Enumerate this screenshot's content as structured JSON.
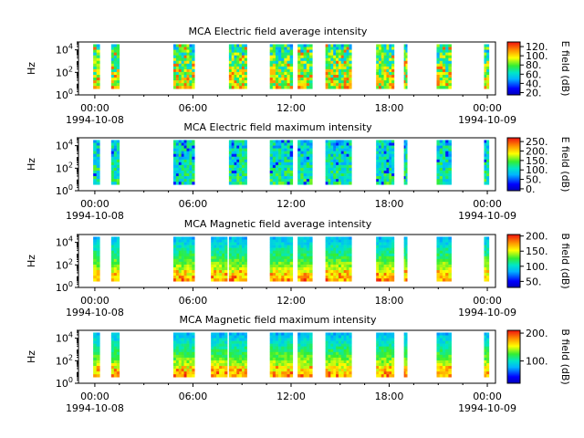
{
  "chart_data": [
    {
      "type": "heatmap",
      "title": "MCA  Electric field average intensity",
      "ylabel": "Hz",
      "colorbar_label": "E field (dB)",
      "colorbar_ticks": [
        "20.",
        "40.",
        "60.",
        "80.",
        "100.",
        "120."
      ],
      "colorbar_range": [
        15,
        130
      ],
      "y_ticks": [
        {
          "base": "10",
          "exp": "0"
        },
        {
          "base": "10",
          "exp": "2"
        },
        {
          "base": "10",
          "exp": "4"
        }
      ],
      "y_scale": "log",
      "x_ticks": [
        "00:00",
        "06:00",
        "12:00",
        "18:00",
        "00:00"
      ],
      "x_dates": [
        "1994-10-08",
        "1994-10-09"
      ],
      "x_range_hours": [
        -1,
        24.5
      ],
      "ylim_log10": [
        0,
        4.7
      ],
      "intensity": "high",
      "data_intervals_hours": [
        [
          -0.1,
          0.3
        ],
        [
          1.0,
          1.5
        ],
        [
          4.8,
          6.1
        ],
        [
          8.2,
          9.3
        ],
        [
          10.7,
          12.1
        ],
        [
          12.4,
          13.3
        ],
        [
          14.1,
          15.7
        ],
        [
          17.2,
          18.3
        ],
        [
          18.9,
          19.1
        ],
        [
          20.9,
          21.8
        ],
        [
          23.8,
          24.1
        ]
      ]
    },
    {
      "type": "heatmap",
      "title": "MCA  Electric field maximum intensity",
      "ylabel": "Hz",
      "colorbar_label": "E field (dB)",
      "colorbar_ticks": [
        "0.",
        "50.",
        "100.",
        "150.",
        "200.",
        "250."
      ],
      "colorbar_range": [
        -10,
        270
      ],
      "y_ticks": [
        {
          "base": "10",
          "exp": "0"
        },
        {
          "base": "10",
          "exp": "2"
        },
        {
          "base": "10",
          "exp": "4"
        }
      ],
      "y_scale": "log",
      "x_ticks": [
        "00:00",
        "06:00",
        "12:00",
        "18:00",
        "00:00"
      ],
      "x_dates": [
        "1994-10-08",
        "1994-10-09"
      ],
      "x_range_hours": [
        -1,
        24.5
      ],
      "ylim_log10": [
        0,
        4.7
      ],
      "intensity": "medium",
      "data_intervals_hours": [
        [
          -0.1,
          0.3
        ],
        [
          1.0,
          1.5
        ],
        [
          4.8,
          6.1
        ],
        [
          8.2,
          9.3
        ],
        [
          10.7,
          12.1
        ],
        [
          12.4,
          13.3
        ],
        [
          14.1,
          15.7
        ],
        [
          17.2,
          18.3
        ],
        [
          18.9,
          19.1
        ],
        [
          20.9,
          21.8
        ],
        [
          23.8,
          24.1
        ]
      ]
    },
    {
      "type": "heatmap",
      "title": "MCA  Magnetic field average intensity",
      "ylabel": "Hz",
      "colorbar_label": "B field (dB)",
      "colorbar_ticks": [
        "50.",
        "100.",
        "150.",
        "200."
      ],
      "colorbar_range": [
        30,
        205
      ],
      "y_ticks": [
        {
          "base": "10",
          "exp": "0"
        },
        {
          "base": "10",
          "exp": "2"
        },
        {
          "base": "10",
          "exp": "4"
        }
      ],
      "y_scale": "log",
      "x_ticks": [
        "00:00",
        "06:00",
        "12:00",
        "18:00",
        "00:00"
      ],
      "x_dates": [
        "1994-10-08",
        "1994-10-09"
      ],
      "x_range_hours": [
        -1,
        24.5
      ],
      "ylim_log10": [
        0,
        4.7
      ],
      "intensity": "magnetic",
      "data_intervals_hours": [
        [
          -0.1,
          0.3
        ],
        [
          1.0,
          1.5
        ],
        [
          4.8,
          6.1
        ],
        [
          7.1,
          8.1
        ],
        [
          8.2,
          9.3
        ],
        [
          10.7,
          12.1
        ],
        [
          12.4,
          13.3
        ],
        [
          14.1,
          15.7
        ],
        [
          17.2,
          18.3
        ],
        [
          18.9,
          19.1
        ],
        [
          20.9,
          21.8
        ],
        [
          23.8,
          24.1
        ]
      ]
    },
    {
      "type": "heatmap",
      "title": "MCA  Magnetic field maximum intensity",
      "ylabel": "Hz",
      "colorbar_label": "B field (dB)",
      "colorbar_ticks": [
        "100.",
        "200."
      ],
      "colorbar_range": [
        20,
        210
      ],
      "y_ticks": [
        {
          "base": "10",
          "exp": "0"
        },
        {
          "base": "10",
          "exp": "2"
        },
        {
          "base": "10",
          "exp": "4"
        }
      ],
      "y_scale": "log",
      "x_ticks": [
        "00:00",
        "06:00",
        "12:00",
        "18:00",
        "00:00"
      ],
      "x_dates": [
        "1994-10-08",
        "1994-10-09"
      ],
      "x_range_hours": [
        -1,
        24.5
      ],
      "ylim_log10": [
        0,
        4.7
      ],
      "intensity": "magnetic",
      "data_intervals_hours": [
        [
          -0.1,
          0.3
        ],
        [
          1.0,
          1.5
        ],
        [
          4.8,
          6.1
        ],
        [
          7.1,
          8.1
        ],
        [
          8.2,
          9.3
        ],
        [
          10.7,
          12.1
        ],
        [
          12.4,
          13.3
        ],
        [
          14.1,
          15.7
        ],
        [
          17.2,
          18.3
        ],
        [
          18.9,
          19.1
        ],
        [
          20.9,
          21.8
        ],
        [
          23.8,
          24.1
        ]
      ]
    }
  ]
}
